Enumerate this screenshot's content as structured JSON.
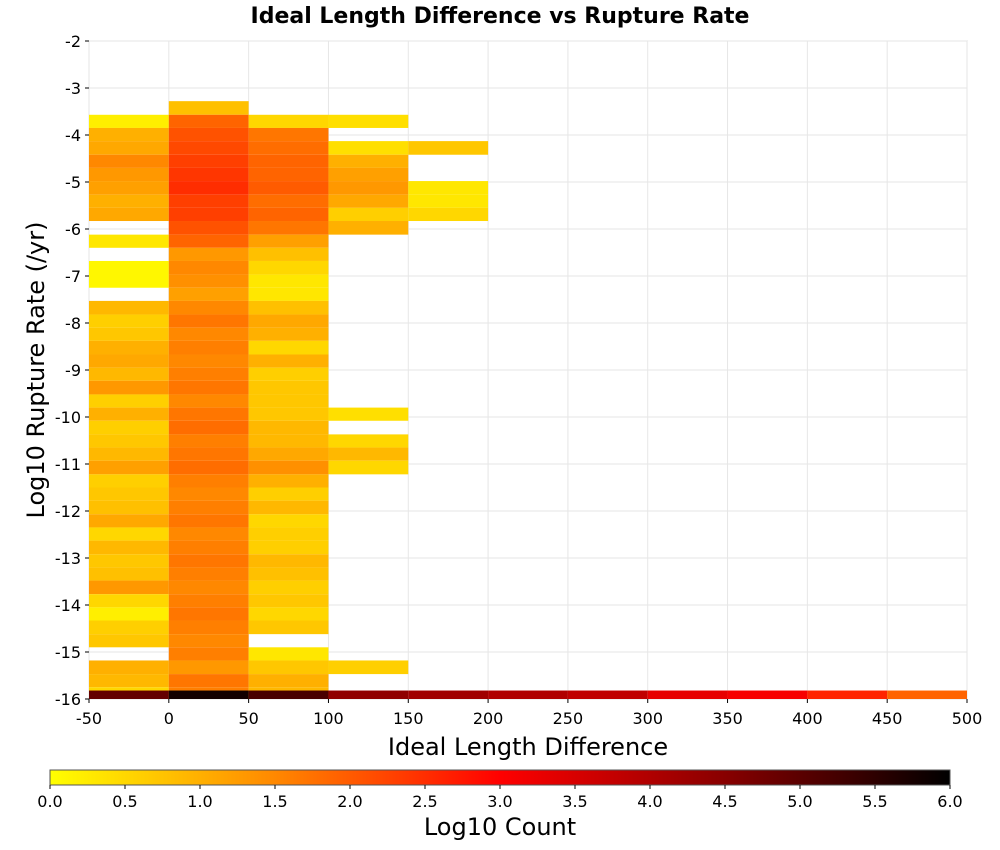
{
  "chart_data": {
    "type": "heatmap",
    "title": "Ideal Length Difference vs Rupture Rate",
    "xlabel": "Ideal Length Difference",
    "ylabel": "Log10 Rupture Rate (/yr)",
    "xlim": [
      -50,
      500
    ],
    "ylim": [
      -16,
      -2
    ],
    "x_ticks": [
      "-50",
      "0",
      "50",
      "100",
      "150",
      "200",
      "250",
      "300",
      "350",
      "400",
      "450",
      "500"
    ],
    "y_ticks": [
      "-2",
      "-3",
      "-4",
      "-5",
      "-6",
      "-7",
      "-8",
      "-9",
      "-10",
      "-11",
      "-12",
      "-13",
      "-14",
      "-15",
      "-16"
    ],
    "grid": true,
    "colorbar": {
      "label": "Log10 Count",
      "min": 0.0,
      "max": 6.0,
      "ticks": [
        "0.0",
        "0.5",
        "1.0",
        "1.5",
        "2.0",
        "2.5",
        "3.0",
        "3.5",
        "4.0",
        "4.5",
        "5.0",
        "5.5",
        "6.0"
      ],
      "colors": [
        "#ffff00",
        "#ff8800",
        "#ff0000",
        "#880000",
        "#000000"
      ],
      "placement": "bottom"
    },
    "bin_width_x": 50,
    "bin_height_y": 0.28,
    "columns": [
      {
        "x0": -50,
        "cells": [
          [
            -3.85,
            -3.57,
            0.2
          ],
          [
            -4.13,
            -3.85,
            1.0
          ],
          [
            -4.42,
            -4.13,
            1.1
          ],
          [
            -4.7,
            -4.42,
            1.5
          ],
          [
            -4.98,
            -4.7,
            1.3
          ],
          [
            -5.27,
            -4.98,
            1.2
          ],
          [
            -5.55,
            -5.27,
            1.0
          ],
          [
            -5.83,
            -5.55,
            1.1
          ],
          [
            -6.4,
            -6.12,
            0.3
          ],
          [
            -7.25,
            -6.68,
            0.1
          ],
          [
            -7.82,
            -7.53,
            0.9
          ],
          [
            -8.1,
            -7.82,
            0.6
          ],
          [
            -8.38,
            -8.1,
            0.7
          ],
          [
            -8.67,
            -8.38,
            1.0
          ],
          [
            -8.95,
            -8.67,
            1.1
          ],
          [
            -9.23,
            -8.95,
            0.9
          ],
          [
            -9.52,
            -9.23,
            1.3
          ],
          [
            -9.8,
            -9.52,
            0.6
          ],
          [
            -10.08,
            -9.8,
            1.0
          ],
          [
            -10.37,
            -10.08,
            0.6
          ],
          [
            -10.65,
            -10.37,
            0.7
          ],
          [
            -10.93,
            -10.65,
            0.9
          ],
          [
            -11.22,
            -10.93,
            1.2
          ],
          [
            -11.5,
            -11.22,
            0.6
          ],
          [
            -11.78,
            -11.5,
            0.7
          ],
          [
            -12.07,
            -11.78,
            0.8
          ],
          [
            -12.35,
            -12.07,
            1.1
          ],
          [
            -12.63,
            -12.35,
            0.5
          ],
          [
            -12.92,
            -12.63,
            0.9
          ],
          [
            -13.2,
            -12.92,
            0.7
          ],
          [
            -13.48,
            -13.2,
            0.8
          ],
          [
            -13.77,
            -13.48,
            1.3
          ],
          [
            -14.05,
            -13.77,
            0.5
          ],
          [
            -14.33,
            -14.05,
            0.2
          ],
          [
            -14.62,
            -14.33,
            0.6
          ],
          [
            -14.9,
            -14.62,
            0.7
          ],
          [
            -15.47,
            -15.18,
            1.0
          ],
          [
            -15.75,
            -15.47,
            0.9
          ],
          [
            -16.0,
            -15.75,
            0.5
          ]
        ]
      },
      {
        "x0": 0,
        "cells": [
          [
            -3.57,
            -3.28,
            0.8
          ],
          [
            -3.85,
            -3.57,
            1.9
          ],
          [
            -4.13,
            -3.85,
            2.1
          ],
          [
            -4.42,
            -4.13,
            2.2
          ],
          [
            -4.7,
            -4.42,
            2.3
          ],
          [
            -4.98,
            -4.7,
            2.4
          ],
          [
            -5.27,
            -4.98,
            2.5
          ],
          [
            -5.55,
            -5.27,
            2.3
          ],
          [
            -5.83,
            -5.55,
            2.3
          ],
          [
            -6.12,
            -5.83,
            2.1
          ],
          [
            -6.4,
            -6.12,
            1.9
          ],
          [
            -6.68,
            -6.4,
            1.3
          ],
          [
            -6.97,
            -6.68,
            1.5
          ],
          [
            -7.25,
            -6.97,
            1.4
          ],
          [
            -7.53,
            -7.25,
            1.2
          ],
          [
            -7.82,
            -7.53,
            1.5
          ],
          [
            -8.1,
            -7.82,
            1.7
          ],
          [
            -8.38,
            -8.1,
            1.5
          ],
          [
            -8.67,
            -8.38,
            1.6
          ],
          [
            -8.95,
            -8.67,
            1.5
          ],
          [
            -9.23,
            -8.95,
            1.6
          ],
          [
            -9.52,
            -9.23,
            1.7
          ],
          [
            -9.8,
            -9.52,
            1.5
          ],
          [
            -10.08,
            -9.8,
            1.7
          ],
          [
            -10.37,
            -10.08,
            1.8
          ],
          [
            -10.65,
            -10.37,
            1.6
          ],
          [
            -10.93,
            -10.65,
            1.7
          ],
          [
            -11.22,
            -10.93,
            1.8
          ],
          [
            -11.5,
            -11.22,
            1.6
          ],
          [
            -11.78,
            -11.5,
            1.5
          ],
          [
            -12.07,
            -11.78,
            1.6
          ],
          [
            -12.35,
            -12.07,
            1.7
          ],
          [
            -12.63,
            -12.35,
            1.5
          ],
          [
            -12.92,
            -12.63,
            1.6
          ],
          [
            -13.2,
            -12.92,
            1.7
          ],
          [
            -13.48,
            -13.2,
            1.6
          ],
          [
            -13.77,
            -13.48,
            1.5
          ],
          [
            -14.05,
            -13.77,
            1.6
          ],
          [
            -14.33,
            -14.05,
            1.7
          ],
          [
            -14.62,
            -14.33,
            1.6
          ],
          [
            -14.9,
            -14.62,
            1.5
          ],
          [
            -15.18,
            -14.9,
            1.6
          ],
          [
            -15.47,
            -15.18,
            1.3
          ],
          [
            -15.75,
            -15.47,
            1.7
          ],
          [
            -16.0,
            -15.75,
            1.6
          ]
        ]
      },
      {
        "x0": 50,
        "cells": [
          [
            -3.85,
            -3.57,
            0.5
          ],
          [
            -4.13,
            -3.85,
            1.7
          ],
          [
            -4.42,
            -4.13,
            1.8
          ],
          [
            -4.7,
            -4.42,
            1.9
          ],
          [
            -4.98,
            -4.7,
            1.9
          ],
          [
            -5.27,
            -4.98,
            2.0
          ],
          [
            -5.55,
            -5.27,
            1.8
          ],
          [
            -5.83,
            -5.55,
            1.9
          ],
          [
            -6.12,
            -5.83,
            1.7
          ],
          [
            -6.4,
            -6.12,
            1.2
          ],
          [
            -6.68,
            -6.4,
            0.8
          ],
          [
            -6.97,
            -6.68,
            0.5
          ],
          [
            -7.25,
            -6.97,
            0.3
          ],
          [
            -7.53,
            -7.25,
            0.3
          ],
          [
            -7.82,
            -7.53,
            0.8
          ],
          [
            -8.1,
            -7.82,
            1.1
          ],
          [
            -8.38,
            -8.1,
            1.0
          ],
          [
            -8.67,
            -8.38,
            0.5
          ],
          [
            -8.95,
            -8.67,
            1.0
          ],
          [
            -9.23,
            -8.95,
            0.6
          ],
          [
            -9.52,
            -9.23,
            0.7
          ],
          [
            -9.8,
            -9.52,
            0.7
          ],
          [
            -10.08,
            -9.8,
            0.7
          ],
          [
            -10.37,
            -10.08,
            0.9
          ],
          [
            -10.65,
            -10.37,
            0.9
          ],
          [
            -10.93,
            -10.65,
            1.1
          ],
          [
            -11.22,
            -10.93,
            1.4
          ],
          [
            -11.5,
            -11.22,
            1.0
          ],
          [
            -11.78,
            -11.5,
            0.6
          ],
          [
            -12.07,
            -11.78,
            0.9
          ],
          [
            -12.35,
            -12.07,
            0.5
          ],
          [
            -12.63,
            -12.35,
            0.6
          ],
          [
            -12.92,
            -12.63,
            0.6
          ],
          [
            -13.2,
            -12.92,
            0.9
          ],
          [
            -13.48,
            -13.2,
            0.8
          ],
          [
            -13.77,
            -13.48,
            0.6
          ],
          [
            -14.05,
            -13.77,
            0.7
          ],
          [
            -14.33,
            -14.05,
            0.5
          ],
          [
            -14.62,
            -14.33,
            0.7
          ],
          [
            -15.18,
            -14.9,
            0.3
          ],
          [
            -15.47,
            -15.18,
            0.7
          ],
          [
            -15.75,
            -15.47,
            1.0
          ],
          [
            -16.0,
            -15.75,
            0.9
          ]
        ]
      },
      {
        "x0": 100,
        "cells": [
          [
            -3.85,
            -3.57,
            0.4
          ],
          [
            -4.42,
            -4.13,
            0.4
          ],
          [
            -4.7,
            -4.42,
            1.0
          ],
          [
            -4.98,
            -4.7,
            1.2
          ],
          [
            -5.27,
            -4.98,
            1.3
          ],
          [
            -5.55,
            -5.27,
            1.1
          ],
          [
            -5.83,
            -5.55,
            0.6
          ],
          [
            -6.12,
            -5.83,
            1.0
          ],
          [
            -10.08,
            -9.8,
            0.4
          ],
          [
            -10.65,
            -10.37,
            0.5
          ],
          [
            -10.93,
            -10.65,
            0.9
          ],
          [
            -11.22,
            -10.93,
            0.5
          ],
          [
            -15.47,
            -15.18,
            0.6
          ]
        ]
      },
      {
        "x0": 150,
        "cells": [
          [
            -4.42,
            -4.13,
            0.7
          ],
          [
            -5.27,
            -4.98,
            0.3
          ],
          [
            -5.55,
            -5.27,
            0.3
          ],
          [
            -5.83,
            -5.55,
            0.5
          ]
        ]
      }
    ],
    "bottom_row": {
      "y0": -16.0,
      "y1": -15.82,
      "values": [
        {
          "x0": -50,
          "v": 4.9
        },
        {
          "x0": 0,
          "v": 5.8
        },
        {
          "x0": 50,
          "v": 5.2
        },
        {
          "x0": 100,
          "v": 4.4
        },
        {
          "x0": 150,
          "v": 4.2
        },
        {
          "x0": 200,
          "v": 4.0
        },
        {
          "x0": 250,
          "v": 3.8
        },
        {
          "x0": 300,
          "v": 3.3
        },
        {
          "x0": 350,
          "v": 3.1
        },
        {
          "x0": 400,
          "v": 2.6
        },
        {
          "x0": 450,
          "v": 1.9
        }
      ]
    }
  }
}
